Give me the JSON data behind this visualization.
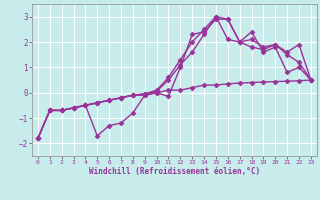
{
  "xlabel": "Windchill (Refroidissement éolien,°C)",
  "ylabel": "",
  "xlim": [
    -0.5,
    23.5
  ],
  "ylim": [
    -2.5,
    3.5
  ],
  "yticks": [
    -2,
    -1,
    0,
    1,
    2,
    3
  ],
  "xticks": [
    0,
    1,
    2,
    3,
    4,
    5,
    6,
    7,
    8,
    9,
    10,
    11,
    12,
    13,
    14,
    15,
    16,
    17,
    18,
    19,
    20,
    21,
    22,
    23
  ],
  "bg_color": "#c8ecec",
  "line_color": "#993399",
  "marker": "D",
  "marker_size": 2.5,
  "line_width": 1.0,
  "lines": [
    {
      "x": [
        0,
        1,
        2,
        3,
        4,
        5,
        6,
        7,
        8,
        9,
        10,
        11,
        12,
        13,
        14,
        15,
        16,
        17,
        18,
        19,
        20,
        21,
        22,
        23
      ],
      "y": [
        -1.8,
        -0.7,
        -0.7,
        -0.6,
        -0.5,
        -0.4,
        -0.3,
        -0.2,
        -0.1,
        -0.1,
        0.0,
        0.1,
        0.1,
        0.2,
        0.3,
        0.3,
        0.35,
        0.38,
        0.4,
        0.42,
        0.44,
        0.45,
        0.47,
        0.5
      ]
    },
    {
      "x": [
        0,
        1,
        2,
        3,
        4,
        5,
        6,
        7,
        8,
        9,
        10,
        11,
        12,
        13,
        14,
        15,
        16,
        17,
        18,
        19,
        20,
        21,
        22,
        23
      ],
      "y": [
        -1.8,
        -0.7,
        -0.7,
        -0.6,
        -0.5,
        -1.7,
        -1.3,
        -1.2,
        -0.8,
        -0.1,
        0.0,
        -0.15,
        1.0,
        2.3,
        2.4,
        2.9,
        2.9,
        2.0,
        2.4,
        1.6,
        1.8,
        0.8,
        1.0,
        0.5
      ]
    },
    {
      "x": [
        0,
        1,
        2,
        3,
        4,
        5,
        6,
        7,
        8,
        9,
        10,
        11,
        12,
        13,
        14,
        15,
        16,
        17,
        18,
        19,
        20,
        21,
        22,
        23
      ],
      "y": [
        -1.8,
        -0.7,
        -0.7,
        -0.6,
        -0.5,
        -0.4,
        -0.3,
        -0.2,
        -0.1,
        -0.05,
        0.05,
        0.5,
        1.1,
        1.6,
        2.3,
        3.0,
        2.9,
        2.0,
        2.1,
        1.8,
        1.9,
        1.5,
        1.2,
        0.5
      ]
    },
    {
      "x": [
        0,
        1,
        2,
        3,
        4,
        5,
        6,
        7,
        8,
        9,
        10,
        11,
        12,
        13,
        14,
        15,
        16,
        17,
        18,
        19,
        20,
        21,
        22,
        23
      ],
      "y": [
        -1.8,
        -0.7,
        -0.7,
        -0.6,
        -0.5,
        -0.4,
        -0.3,
        -0.2,
        -0.1,
        -0.05,
        0.1,
        0.6,
        1.3,
        2.0,
        2.5,
        3.0,
        2.1,
        2.0,
        1.8,
        1.7,
        1.9,
        1.6,
        1.9,
        0.5
      ]
    }
  ]
}
